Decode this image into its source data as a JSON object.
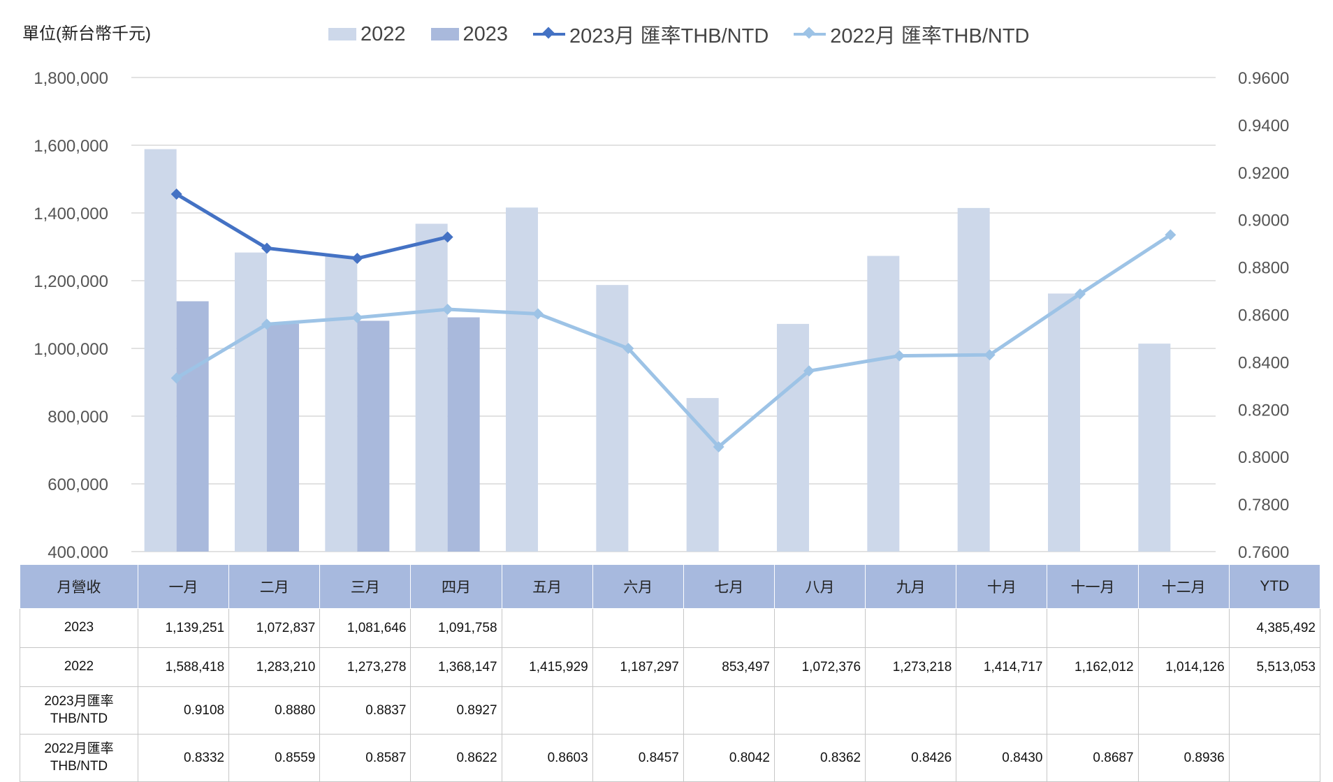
{
  "chart_data": {
    "type": "bar+line",
    "unit_label": "單位(新台幣千元)",
    "categories": [
      "一月",
      "二月",
      "三月",
      "四月",
      "五月",
      "六月",
      "七月",
      "八月",
      "九月",
      "十月",
      "十一月",
      "十二月"
    ],
    "bar_series": [
      {
        "name": "2022",
        "color": "#cdd8ea",
        "values": [
          1588418,
          1283210,
          1273278,
          1368147,
          1415929,
          1187297,
          853497,
          1072376,
          1273218,
          1414717,
          1162012,
          1014126
        ]
      },
      {
        "name": "2023",
        "color": "#a9b9dc",
        "values": [
          1139251,
          1072837,
          1081646,
          1091758
        ]
      }
    ],
    "line_series": [
      {
        "name": "2023月 匯率THB/NTD",
        "color": "#4472c4",
        "values": [
          0.9108,
          0.888,
          0.8837,
          0.8927
        ]
      },
      {
        "name": "2022月 匯率THB/NTD",
        "color": "#9dc3e6",
        "values": [
          0.8332,
          0.8559,
          0.8587,
          0.8622,
          0.8603,
          0.8457,
          0.8042,
          0.8362,
          0.8426,
          0.843,
          0.8687,
          0.8936
        ]
      }
    ],
    "y_left": {
      "min": 400000,
      "max": 1800000,
      "ticks": [
        "400,000",
        "600,000",
        "800,000",
        "1,000,000",
        "1,200,000",
        "1,400,000",
        "1,600,000",
        "1,800,000"
      ]
    },
    "y_right": {
      "min": 0.76,
      "max": 0.96,
      "ticks": [
        "0.7600",
        "0.7800",
        "0.8000",
        "0.8200",
        "0.8400",
        "0.8600",
        "0.8800",
        "0.9000",
        "0.9200",
        "0.9400",
        "0.9600"
      ]
    },
    "grid": true,
    "legend_position": "top"
  },
  "table": {
    "header": [
      "月營收",
      "一月",
      "二月",
      "三月",
      "四月",
      "五月",
      "六月",
      "七月",
      "八月",
      "九月",
      "十月",
      "十一月",
      "十二月",
      "YTD"
    ],
    "rows": [
      {
        "label": "2023",
        "cells": [
          "1,139,251",
          "1,072,837",
          "1,081,646",
          "1,091,758",
          "",
          "",
          "",
          "",
          "",
          "",
          "",
          "",
          "4,385,492"
        ]
      },
      {
        "label": "2022",
        "cells": [
          "1,588,418",
          "1,283,210",
          "1,273,278",
          "1,368,147",
          "1,415,929",
          "1,187,297",
          "853,497",
          "1,072,376",
          "1,273,218",
          "1,414,717",
          "1,162,012",
          "1,014,126",
          "5,513,053"
        ]
      },
      {
        "label": "2023月匯率 THB/NTD",
        "cells": [
          "0.9108",
          "0.8880",
          "0.8837",
          "0.8927",
          "",
          "",
          "",
          "",
          "",
          "",
          "",
          "",
          ""
        ]
      },
      {
        "label": "2022月匯率 THB/NTD",
        "cells": [
          "0.8332",
          "0.8559",
          "0.8587",
          "0.8622",
          "0.8603",
          "0.8457",
          "0.8042",
          "0.8362",
          "0.8426",
          "0.8430",
          "0.8687",
          "0.8936",
          ""
        ]
      }
    ]
  }
}
